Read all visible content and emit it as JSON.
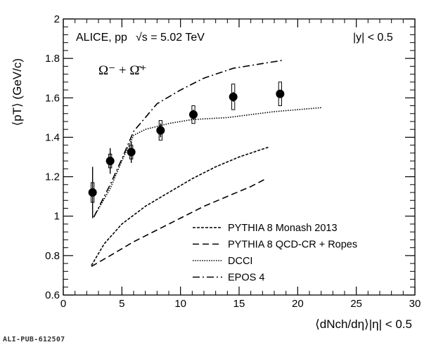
{
  "chart_data": {
    "type": "line",
    "title": "",
    "annotations": {
      "experiment": "ALICE, pp",
      "energy": "√s = 5.02 TeV",
      "rapidity": "|y| < 0.5",
      "particle": "Ω⁻ + Ω̄⁺"
    },
    "xlabel": "⟨dNch/dη⟩|η| < 0.5",
    "ylabel": "⟨pT⟩ (GeV/c)",
    "xlim": [
      0,
      30
    ],
    "ylim": [
      0.6,
      2.0
    ],
    "x_ticks": [
      "0",
      "5",
      "10",
      "15",
      "20",
      "25",
      "30"
    ],
    "y_ticks": [
      "0.6",
      "0.8",
      "1",
      "1.2",
      "1.4",
      "1.6",
      "1.8",
      "2"
    ],
    "grid": false,
    "legend_position": "bottom-right",
    "data": {
      "name": "",
      "points": [
        {
          "x": 2.5,
          "y": 1.12,
          "stat": 0.13,
          "sys": 0.05,
          "sys_width": 0.3
        },
        {
          "x": 4.0,
          "y": 1.28,
          "stat": 0.065,
          "sys": 0.035,
          "sys_width": 0.3
        },
        {
          "x": 5.8,
          "y": 1.325,
          "stat": 0.055,
          "sys": 0.035,
          "sys_width": 0.3
        },
        {
          "x": 8.3,
          "y": 1.435,
          "stat": 0.035,
          "sys": 0.05,
          "sys_width": 0.3
        },
        {
          "x": 11.1,
          "y": 1.515,
          "stat": 0.025,
          "sys": 0.045,
          "sys_width": 0.3
        },
        {
          "x": 14.5,
          "y": 1.605,
          "stat": 0.025,
          "sys": 0.065,
          "sys_width": 0.3
        },
        {
          "x": 18.5,
          "y": 1.62,
          "stat": 0.02,
          "sys": 0.06,
          "sys_width": 0.3
        }
      ]
    },
    "series": [
      {
        "name": "PYTHIA 8 Monash 2013",
        "style": "dotted-dense",
        "x": [
          2.4,
          3.5,
          5,
          7,
          9,
          11,
          13,
          15,
          17.5
        ],
        "y": [
          0.75,
          0.86,
          0.96,
          1.05,
          1.12,
          1.19,
          1.25,
          1.3,
          1.35
        ]
      },
      {
        "name": "PYTHIA 8 QCD-CR + Ropes",
        "style": "dashed",
        "x": [
          2.4,
          4,
          6,
          8,
          10,
          12,
          14,
          16,
          17.3
        ],
        "y": [
          0.745,
          0.8,
          0.87,
          0.93,
          0.99,
          1.05,
          1.1,
          1.15,
          1.19
        ]
      },
      {
        "name": "DCCI",
        "style": "dotted",
        "x": [
          2.6,
          4,
          5,
          6,
          7,
          9,
          11,
          14,
          18,
          22
        ],
        "y": [
          0.995,
          1.14,
          1.28,
          1.41,
          1.44,
          1.47,
          1.49,
          1.5,
          1.53,
          1.55
        ]
      },
      {
        "name": "EPOS 4",
        "style": "dashdot",
        "x": [
          2.6,
          4,
          5,
          6,
          8,
          10,
          12,
          14.5,
          18.7
        ],
        "y": [
          0.995,
          1.16,
          1.29,
          1.43,
          1.57,
          1.64,
          1.7,
          1.75,
          1.79
        ]
      }
    ],
    "footer": "ALI-PUB-612507"
  }
}
